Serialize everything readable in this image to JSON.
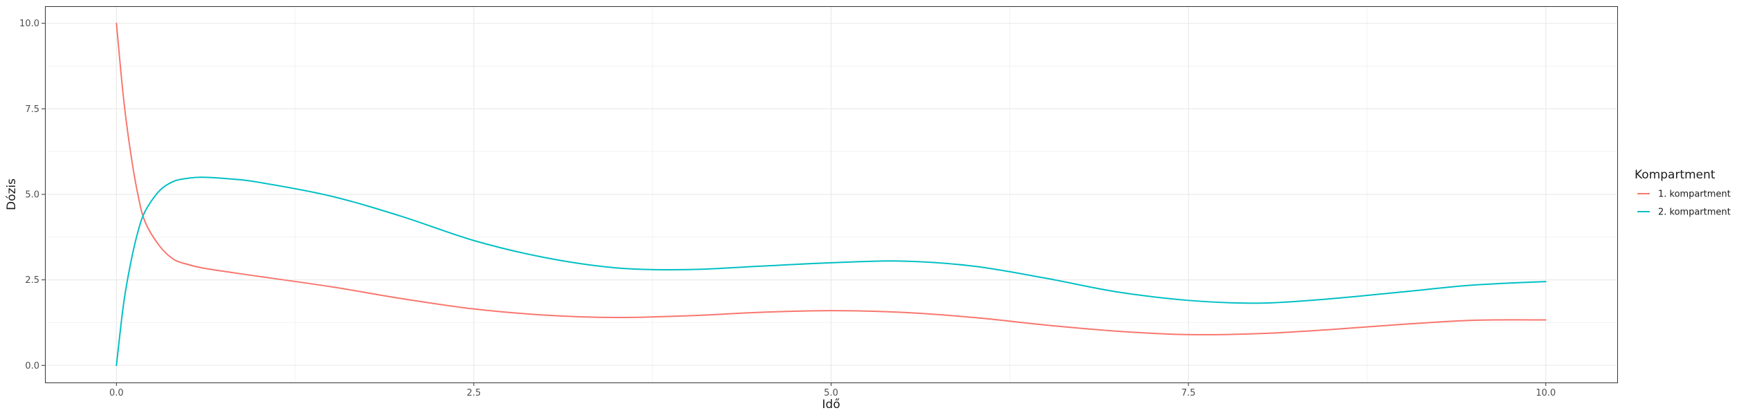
{
  "chart_data": {
    "type": "line",
    "xlabel": "Idő",
    "ylabel": "Dózis",
    "xlim": [
      -0.5,
      10.5
    ],
    "ylim": [
      -0.5,
      10.5
    ],
    "x_ticks": [
      0.0,
      2.5,
      5.0,
      7.5,
      10.0
    ],
    "x_tick_labels": [
      "0.0",
      "2.5",
      "5.0",
      "7.5",
      "10.0"
    ],
    "y_ticks": [
      0.0,
      2.5,
      5.0,
      7.5,
      10.0
    ],
    "y_tick_labels": [
      "0.0",
      "2.5",
      "5.0",
      "7.5",
      "10.0"
    ],
    "grid": true,
    "legend": {
      "title": "Kompartment",
      "position": "right"
    },
    "series": [
      {
        "name": "1. kompartment",
        "color": "#F8766D",
        "x": [
          0,
          0.05,
          0.1,
          0.15,
          0.2,
          0.3,
          0.4,
          0.5,
          0.6,
          0.8,
          1.0,
          1.5,
          2.0,
          2.5,
          3.0,
          3.5,
          4.0,
          4.5,
          5.0,
          5.5,
          6.0,
          6.5,
          7.0,
          7.5,
          8.0,
          8.5,
          9.0,
          9.5,
          10.0
        ],
        "y": [
          10.0,
          7.8,
          6.2,
          5.0,
          4.2,
          3.5,
          3.1,
          2.95,
          2.85,
          2.72,
          2.6,
          2.3,
          1.95,
          1.65,
          1.47,
          1.4,
          1.45,
          1.55,
          1.6,
          1.55,
          1.4,
          1.18,
          1.0,
          0.9,
          0.93,
          1.05,
          1.2,
          1.32,
          1.33
        ]
      },
      {
        "name": "2. kompartment",
        "color": "#00BFC4",
        "x": [
          0,
          0.05,
          0.1,
          0.15,
          0.2,
          0.3,
          0.4,
          0.5,
          0.6,
          0.8,
          1.0,
          1.5,
          2.0,
          2.5,
          3.0,
          3.5,
          4.0,
          4.5,
          5.0,
          5.5,
          6.0,
          6.5,
          7.0,
          7.5,
          8.0,
          8.5,
          9.0,
          9.5,
          10.0
        ],
        "y": [
          0.0,
          1.8,
          3.0,
          3.9,
          4.5,
          5.1,
          5.38,
          5.47,
          5.5,
          5.45,
          5.35,
          4.95,
          4.35,
          3.65,
          3.15,
          2.85,
          2.8,
          2.9,
          3.0,
          3.05,
          2.9,
          2.55,
          2.15,
          1.9,
          1.82,
          1.95,
          2.15,
          2.35,
          2.45
        ]
      }
    ]
  }
}
